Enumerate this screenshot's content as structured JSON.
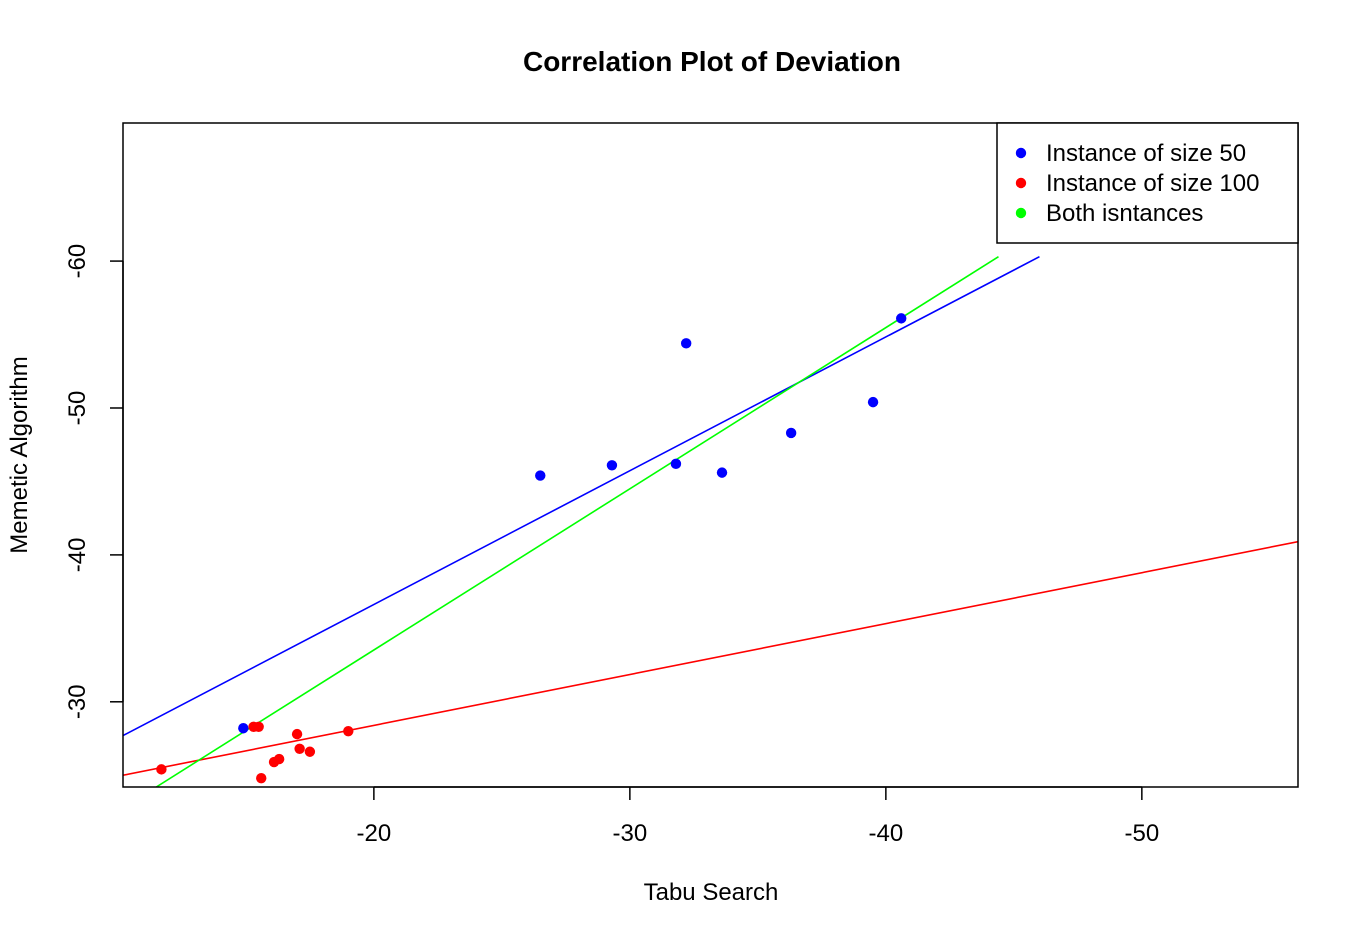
{
  "chart_data": {
    "type": "scatter",
    "title": "Correlation Plot of Deviation",
    "xlabel": "Tabu Search",
    "ylabel": "Memetic Algorithm",
    "xlim": [
      -10.2,
      -56.1
    ],
    "ylim": [
      -24.2,
      -69.4
    ],
    "x_ticks": [
      -20,
      -30,
      -40,
      -50
    ],
    "x_tick_labels": [
      "-20",
      "-30",
      "-40",
      "-50"
    ],
    "y_ticks": [
      -30,
      -40,
      -50,
      -60
    ],
    "y_tick_labels": [
      "-30",
      "-40",
      "-50",
      "-60"
    ],
    "grid": false,
    "legend_position": "top-right",
    "series": [
      {
        "name": "Instance of size 50",
        "color": "#0000ff",
        "points": [
          {
            "x": -14.9,
            "y": -28.2
          },
          {
            "x": -26.5,
            "y": -45.4
          },
          {
            "x": -29.3,
            "y": -46.1
          },
          {
            "x": -31.8,
            "y": -46.2
          },
          {
            "x": -32.2,
            "y": -54.4
          },
          {
            "x": -33.6,
            "y": -45.6
          },
          {
            "x": -36.3,
            "y": -48.3
          },
          {
            "x": -39.5,
            "y": -50.4
          },
          {
            "x": -40.6,
            "y": -56.1
          }
        ]
      },
      {
        "name": "Instance of size 100",
        "color": "#ff0000",
        "points": [
          {
            "x": -11.7,
            "y": -25.4
          },
          {
            "x": -15.3,
            "y": -28.3
          },
          {
            "x": -15.5,
            "y": -28.3
          },
          {
            "x": -15.6,
            "y": -24.8
          },
          {
            "x": -16.1,
            "y": -25.9
          },
          {
            "x": -16.3,
            "y": -26.1
          },
          {
            "x": -17.0,
            "y": -27.8
          },
          {
            "x": -17.1,
            "y": -26.8
          },
          {
            "x": -17.5,
            "y": -26.6
          },
          {
            "x": -19.0,
            "y": -28.0
          }
        ]
      },
      {
        "name": "Both isntances",
        "color": "#00ff00",
        "points": []
      }
    ],
    "regression_lines": [
      {
        "series": "Instance of size 50",
        "color": "#0000ff",
        "x1": -10.2,
        "y1": -27.7,
        "x2": -46.0,
        "y2": -60.3
      },
      {
        "series": "Instance of size 100",
        "color": "#ff0000",
        "x1": -10.2,
        "y1": -25.0,
        "x2": -56.1,
        "y2": -40.9
      },
      {
        "series": "Both isntances",
        "color": "#00ff00",
        "x1": -11.5,
        "y1": -24.2,
        "x2": -44.4,
        "y2": -60.3
      }
    ]
  }
}
